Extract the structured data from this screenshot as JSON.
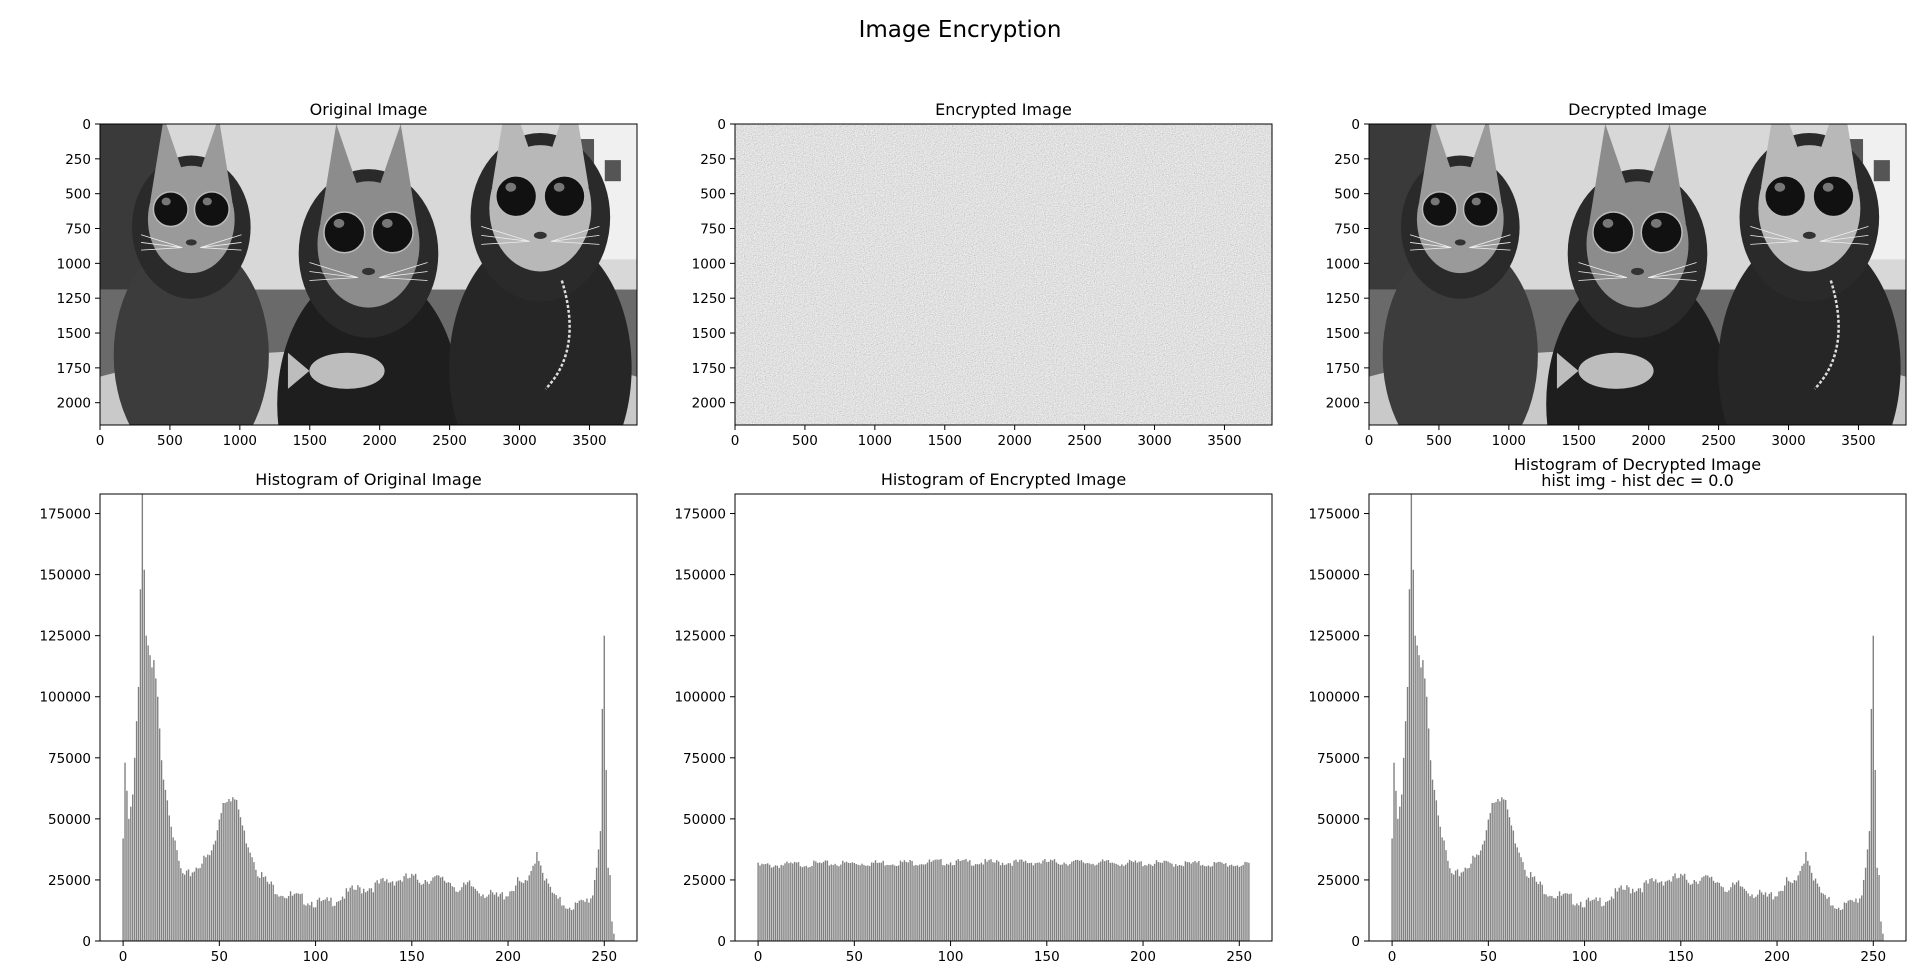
{
  "figure": {
    "title": "Image Encryption"
  },
  "panels": [
    {
      "title": "Original Image",
      "kind": "cats",
      "x_ticks": [
        "0",
        "500",
        "1000",
        "1500",
        "2000",
        "2500",
        "3000",
        "3500"
      ],
      "y_ticks": [
        "0",
        "250",
        "500",
        "750",
        "1000",
        "1250",
        "1500",
        "1750",
        "2000"
      ]
    },
    {
      "title": "Encrypted Image",
      "kind": "noise",
      "x_ticks": [
        "0",
        "500",
        "1000",
        "1500",
        "2000",
        "2500",
        "3000",
        "3500"
      ],
      "y_ticks": [
        "0",
        "250",
        "500",
        "750",
        "1000",
        "1250",
        "1500",
        "1750",
        "2000"
      ]
    },
    {
      "title": "Decrypted Image",
      "kind": "cats",
      "x_ticks": [
        "0",
        "500",
        "1000",
        "1500",
        "2000",
        "2500",
        "3000",
        "3500"
      ],
      "y_ticks": [
        "0",
        "250",
        "500",
        "750",
        "1000",
        "1250",
        "1500",
        "1750",
        "2000"
      ]
    }
  ],
  "chart_data": [
    {
      "type": "bar",
      "title": "Histogram of Original Image",
      "xlim": [
        -12,
        267
      ],
      "ylim": [
        0,
        183000
      ],
      "x_ticks": [
        0,
        50,
        100,
        150,
        200,
        250
      ],
      "y_ticks": [
        0,
        25000,
        50000,
        75000,
        100000,
        125000,
        150000,
        175000
      ],
      "color": "#808080",
      "keypoints": [
        [
          0,
          42000
        ],
        [
          1,
          73000
        ],
        [
          3,
          50000
        ],
        [
          5,
          60000
        ],
        [
          7,
          90000
        ],
        [
          8,
          104000
        ],
        [
          9,
          144000
        ],
        [
          10,
          183000
        ],
        [
          11,
          152000
        ],
        [
          12,
          125000
        ],
        [
          14,
          117000
        ],
        [
          15,
          112000
        ],
        [
          16,
          115000
        ],
        [
          18,
          100000
        ],
        [
          20,
          74000
        ],
        [
          23,
          60000
        ],
        [
          25,
          50000
        ],
        [
          27,
          40000
        ],
        [
          30,
          30000
        ],
        [
          32,
          27000
        ],
        [
          35,
          29000
        ],
        [
          40,
          33000
        ],
        [
          45,
          36000
        ],
        [
          48,
          42000
        ],
        [
          50,
          52000
        ],
        [
          52,
          58000
        ],
        [
          55,
          61000
        ],
        [
          58,
          59000
        ],
        [
          60,
          55000
        ],
        [
          63,
          45000
        ],
        [
          67,
          37000
        ],
        [
          70,
          30000
        ],
        [
          75,
          25000
        ],
        [
          80,
          22000
        ],
        [
          85,
          20000
        ],
        [
          90,
          19000
        ],
        [
          95,
          18000
        ],
        [
          100,
          17000
        ],
        [
          105,
          16500
        ],
        [
          110,
          18000
        ],
        [
          115,
          20000
        ],
        [
          120,
          22000
        ],
        [
          130,
          23500
        ],
        [
          135,
          25000
        ],
        [
          140,
          26000
        ],
        [
          150,
          27000
        ],
        [
          155,
          26000
        ],
        [
          160,
          27000
        ],
        [
          165,
          26000
        ],
        [
          170,
          25500
        ],
        [
          175,
          22000
        ],
        [
          180,
          24000
        ],
        [
          185,
          22000
        ],
        [
          190,
          20000
        ],
        [
          195,
          19000
        ],
        [
          200,
          21000
        ],
        [
          205,
          25000
        ],
        [
          210,
          24000
        ],
        [
          213,
          32000
        ],
        [
          215,
          38000
        ],
        [
          217,
          33000
        ],
        [
          220,
          25000
        ],
        [
          225,
          18000
        ],
        [
          230,
          16000
        ],
        [
          235,
          15500
        ],
        [
          240,
          17000
        ],
        [
          244,
          20000
        ],
        [
          246,
          30000
        ],
        [
          248,
          45000
        ],
        [
          249,
          95000
        ],
        [
          250,
          125000
        ],
        [
          251,
          70000
        ],
        [
          252,
          30000
        ],
        [
          253,
          27000
        ],
        [
          254,
          8000
        ],
        [
          255,
          3000
        ]
      ]
    },
    {
      "type": "bar",
      "title": "Histogram of Encrypted Image",
      "xlim": [
        -12,
        267
      ],
      "ylim": [
        0,
        183000
      ],
      "x_ticks": [
        0,
        50,
        100,
        150,
        200,
        250
      ],
      "y_ticks": [
        0,
        25000,
        50000,
        75000,
        100000,
        125000,
        150000,
        175000
      ],
      "color": "#808080",
      "keypoints": [
        [
          0,
          31500
        ],
        [
          25,
          32200
        ],
        [
          50,
          32500
        ],
        [
          75,
          32800
        ],
        [
          100,
          33000
        ],
        [
          125,
          32800
        ],
        [
          150,
          33000
        ],
        [
          175,
          32800
        ],
        [
          200,
          32500
        ],
        [
          225,
          32300
        ],
        [
          250,
          32000
        ],
        [
          255,
          31500
        ]
      ]
    },
    {
      "type": "bar",
      "title": "Histogram of Decrypted Image",
      "subtitle": "hist img - hist dec = 0.0",
      "xlim": [
        -12,
        267
      ],
      "ylim": [
        0,
        183000
      ],
      "x_ticks": [
        0,
        50,
        100,
        150,
        200,
        250
      ],
      "y_ticks": [
        0,
        25000,
        50000,
        75000,
        100000,
        125000,
        150000,
        175000
      ],
      "color": "#808080",
      "same_as": 0
    }
  ]
}
